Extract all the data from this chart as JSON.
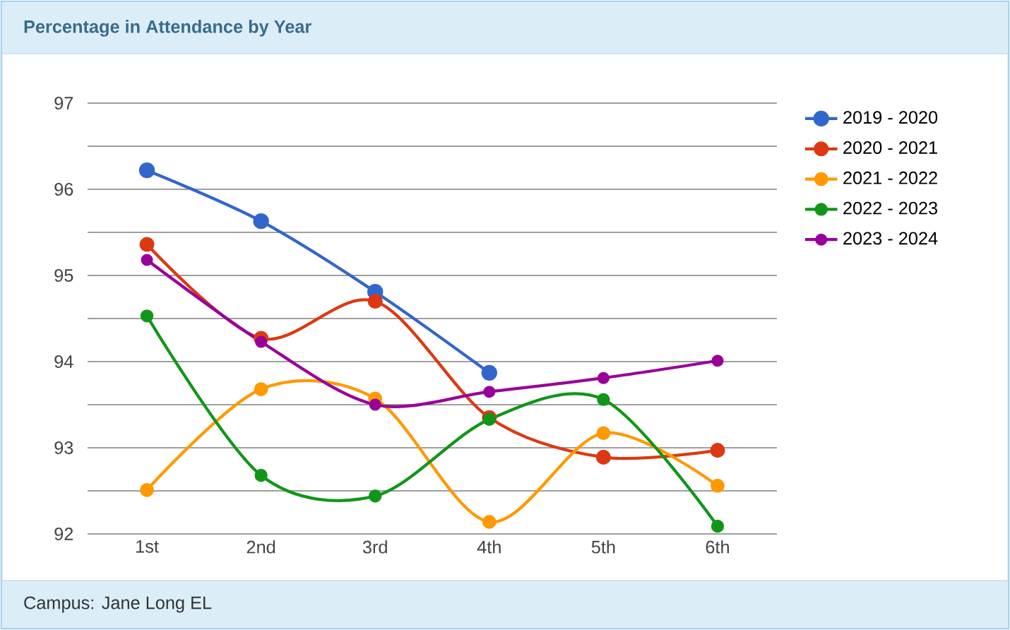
{
  "chart_data": {
    "type": "line",
    "title": "Percentage in Attendance by Year",
    "categories": [
      "1st",
      "2nd",
      "3rd",
      "4th",
      "5th",
      "6th"
    ],
    "series": [
      {
        "name": "2019 - 2020",
        "color": "#3366cc",
        "values": [
          96.22,
          95.63,
          94.81,
          93.87,
          null,
          null
        ]
      },
      {
        "name": "2020 - 2021",
        "color": "#dc3912",
        "values": [
          95.36,
          94.27,
          94.7,
          93.35,
          92.89,
          92.97
        ]
      },
      {
        "name": "2021 - 2022",
        "color": "#ff9900",
        "values": [
          92.51,
          93.68,
          93.57,
          92.14,
          93.17,
          92.56
        ]
      },
      {
        "name": "2022 - 2023",
        "color": "#109618",
        "values": [
          94.53,
          92.68,
          92.44,
          93.33,
          93.56,
          92.09
        ]
      },
      {
        "name": "2023 - 2024",
        "color": "#990099",
        "values": [
          95.18,
          94.23,
          93.5,
          93.65,
          93.81,
          94.01
        ]
      }
    ],
    "ylim": [
      92,
      97
    ],
    "yticks": [
      92,
      {
        "value": 92.5,
        "label": null
      },
      93,
      {
        "value": 93.5,
        "label": null
      },
      94,
      {
        "value": 94.5,
        "label": null
      },
      95,
      {
        "value": 95.5,
        "label": null
      },
      96,
      {
        "value": 96.5,
        "label": null
      },
      97
    ],
    "grid": "y",
    "legend": "top right",
    "marker": "circle",
    "line_style": "solid",
    "annotations": [
      "Campus: Jane Long EL"
    ]
  }
}
